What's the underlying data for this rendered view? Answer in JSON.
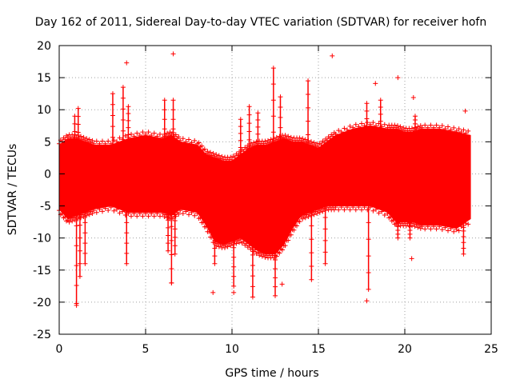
{
  "chart_data": {
    "type": "scatter",
    "title": "Day 162 of 2011, Sidereal Day-to-day VTEC variation (SDTVAR) for receiver hofn",
    "xlabel": "GPS time / hours",
    "ylabel": "SDTVAR / TECUs",
    "xlim": [
      0,
      25
    ],
    "ylim": [
      -25,
      20
    ],
    "xticks": [
      "0",
      "5",
      "10",
      "15",
      "20",
      "25"
    ],
    "yticks": [
      "20",
      "15",
      "10",
      "5",
      "0",
      "-5",
      "-10",
      "-15",
      "-20",
      "-25"
    ],
    "grid": true,
    "series_color": "#ff0000",
    "band": {
      "x": [
        0.0,
        0.5,
        1.0,
        1.5,
        2.0,
        3.0,
        4.0,
        5.0,
        6.0,
        6.5,
        7.0,
        8.0,
        8.5,
        9.0,
        9.5,
        10.0,
        10.5,
        11.0,
        11.5,
        12.0,
        12.5,
        13.0,
        13.5,
        14.0,
        14.5,
        15.0,
        15.5,
        16.0,
        17.0,
        18.0,
        19.0,
        19.5,
        20.0,
        20.5,
        21.0,
        22.0,
        23.0,
        23.8
      ],
      "upper": [
        4.5,
        5.5,
        5.5,
        5.0,
        4.5,
        4.5,
        5.5,
        6.0,
        5.5,
        6.0,
        5.0,
        4.5,
        3.0,
        2.5,
        2.0,
        2.0,
        3.0,
        4.0,
        4.5,
        4.5,
        5.0,
        5.5,
        5.0,
        5.0,
        4.5,
        4.0,
        5.0,
        6.0,
        7.0,
        7.5,
        7.0,
        7.0,
        6.5,
        6.5,
        7.0,
        7.0,
        6.5,
        6.0
      ],
      "lower": [
        -5.5,
        -7.0,
        -6.5,
        -6.0,
        -5.5,
        -5.0,
        -6.0,
        -6.0,
        -6.0,
        -6.5,
        -5.5,
        -6.0,
        -8.0,
        -10.5,
        -11.0,
        -10.5,
        -10.0,
        -11.0,
        -12.0,
        -12.5,
        -12.5,
        -11.0,
        -8.5,
        -6.5,
        -6.0,
        -5.5,
        -5.0,
        -5.0,
        -5.0,
        -5.0,
        -6.0,
        -7.5,
        -7.5,
        -7.5,
        -8.0,
        -8.0,
        -8.5,
        -7.0
      ]
    },
    "spikes": [
      {
        "x": 0.9,
        "y0": 3,
        "y1": 9
      },
      {
        "x": 1.0,
        "y0": -5,
        "y1": -20.5
      },
      {
        "x": 1.1,
        "y0": 4,
        "y1": 10.2
      },
      {
        "x": 1.2,
        "y0": -6,
        "y1": -16
      },
      {
        "x": 1.5,
        "y0": -6,
        "y1": -14
      },
      {
        "x": 3.1,
        "y0": 4,
        "y1": 12.5
      },
      {
        "x": 3.7,
        "y0": 5,
        "y1": 13.5
      },
      {
        "x": 3.9,
        "y0": -6,
        "y1": -14
      },
      {
        "x": 4.0,
        "y0": 5,
        "y1": 10.5
      },
      {
        "x": 6.1,
        "y0": 4,
        "y1": 11.5
      },
      {
        "x": 6.3,
        "y0": -6,
        "y1": -12
      },
      {
        "x": 6.5,
        "y0": -6,
        "y1": -17
      },
      {
        "x": 6.6,
        "y0": 4,
        "y1": 11.5
      },
      {
        "x": 6.7,
        "y0": -6,
        "y1": -12.5
      },
      {
        "x": 9.0,
        "y0": -8,
        "y1": -14
      },
      {
        "x": 10.1,
        "y0": -10,
        "y1": -17.5
      },
      {
        "x": 10.5,
        "y0": 3,
        "y1": 8.5
      },
      {
        "x": 11.0,
        "y0": 4,
        "y1": 10.5
      },
      {
        "x": 11.2,
        "y0": -11,
        "y1": -19.2
      },
      {
        "x": 11.5,
        "y0": 4,
        "y1": 9.5
      },
      {
        "x": 12.4,
        "y0": 4,
        "y1": 16.5
      },
      {
        "x": 12.5,
        "y0": -12,
        "y1": -19
      },
      {
        "x": 12.8,
        "y0": 4,
        "y1": 12
      },
      {
        "x": 14.4,
        "y0": 4,
        "y1": 14.5
      },
      {
        "x": 14.6,
        "y0": -6,
        "y1": -16.5
      },
      {
        "x": 15.4,
        "y0": -5,
        "y1": -14
      },
      {
        "x": 17.8,
        "y0": 5,
        "y1": 11
      },
      {
        "x": 17.9,
        "y0": -5,
        "y1": -18
      },
      {
        "x": 18.6,
        "y0": 6,
        "y1": 11.5
      },
      {
        "x": 19.6,
        "y0": -7,
        "y1": -10
      },
      {
        "x": 20.3,
        "y0": -7,
        "y1": -10
      },
      {
        "x": 20.6,
        "y0": 6,
        "y1": 9
      },
      {
        "x": 23.4,
        "y0": -8,
        "y1": -12.5
      }
    ],
    "outliers": [
      {
        "x": 3.9,
        "y": 17.3
      },
      {
        "x": 6.6,
        "y": 18.7
      },
      {
        "x": 15.8,
        "y": 18.4
      },
      {
        "x": 18.3,
        "y": 14.1
      },
      {
        "x": 19.6,
        "y": 15.0
      },
      {
        "x": 20.5,
        "y": 11.9
      },
      {
        "x": 23.5,
        "y": 9.8
      },
      {
        "x": 8.9,
        "y": -18.5
      },
      {
        "x": 10.1,
        "y": -18.5
      },
      {
        "x": 12.9,
        "y": -17.2
      },
      {
        "x": 17.8,
        "y": -19.8
      },
      {
        "x": 20.4,
        "y": -13.2
      },
      {
        "x": 1.0,
        "y": -20.2
      },
      {
        "x": 6.5,
        "y": -17.0
      }
    ]
  }
}
